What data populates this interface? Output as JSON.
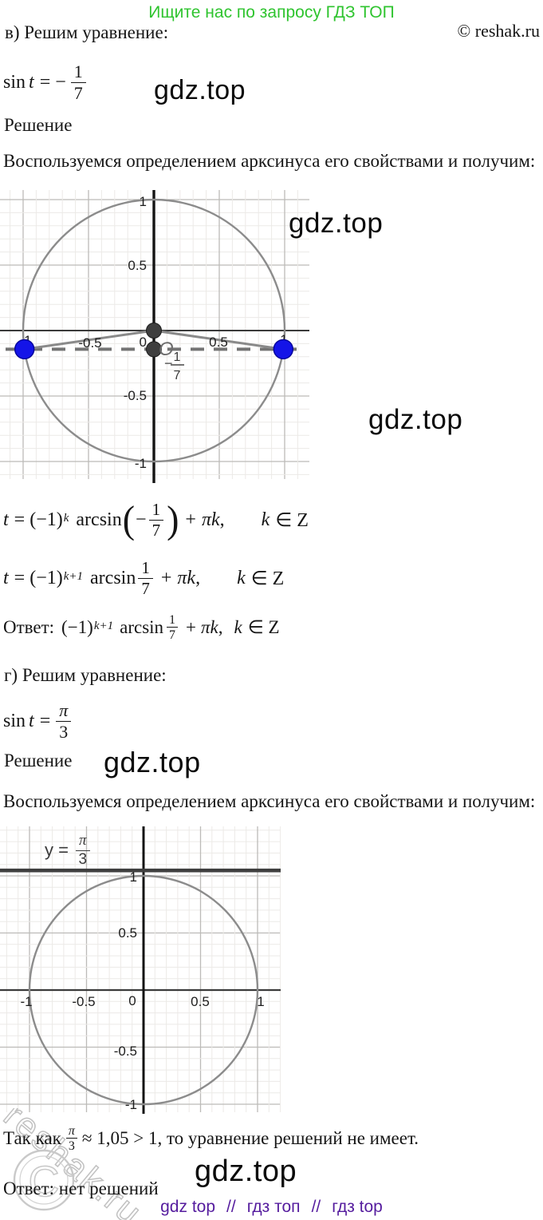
{
  "page": {
    "promo": "Ищите нас по запросу ГДЗ ТОП",
    "copyright": "© reshak.ru",
    "watermark": "gdz.top",
    "footer": {
      "link1": "gdz top",
      "sep1": "//",
      "link2": "гдз топ",
      "sep2": "//",
      "link3": "гдз top"
    },
    "colors": {
      "promo_green": "#2fc42f",
      "footer_purple": "#551c9e",
      "point_blue": "#1414e8",
      "point_dark": "#3e3e3e"
    }
  },
  "stamp": {
    "text": "reshak.ru",
    "symbol": "C"
  },
  "sections": {
    "v": {
      "heading": "в) Решим уравнение:",
      "eq": {
        "sin": "sin",
        "var": "t",
        "rel": "= −",
        "num": "1",
        "den": "7"
      },
      "solution": "Решение",
      "method": "Воспользуемся определением арксинуса его свойствами и получим:",
      "f1": {
        "var": "t",
        "eq": "= (−1)",
        "sup": "k",
        "fn": "arcsin",
        "lp": "(",
        "minus": "−",
        "num": "1",
        "den": "7",
        "rp": ")",
        "plus": "+",
        "pik": "πk",
        "comma": ",",
        "kvar": "k",
        "cond": "∈ Z"
      },
      "f2": {
        "var": "t",
        "eq": "= (−1)",
        "sup": "k+1",
        "fn": "arcsin",
        "num": "1",
        "den": "7",
        "plus": "+",
        "pik": "πk",
        "comma": ",",
        "kvar": "k",
        "cond": "∈ Z"
      },
      "answer": {
        "label": "Ответ:",
        "eq": "(−1)",
        "sup": "k+1",
        "fn": "arcsin",
        "num": "1",
        "den": "7",
        "plus": "+",
        "pik": "πk",
        "comma": ",",
        "kvar": "k",
        "cond": "∈ Z"
      }
    },
    "g": {
      "heading": "г) Решим уравнение:",
      "eq": {
        "sin": "sin",
        "var": "t",
        "rel": "=",
        "num": "π",
        "den": "3"
      },
      "solution": "Решение",
      "method": "Воспользуемся определением арксинуса его свойствами и получим:",
      "conclusion": {
        "pre": "Так как",
        "num": "π",
        "den": "3",
        "post": "≈ 1,05 > 1, то уравнение решений не имеет."
      },
      "answer": "Ответ: нет решений"
    }
  },
  "chart_data": [
    {
      "type": "scatter",
      "title": "",
      "xlabel": "",
      "ylabel": "",
      "description": "Unit circle x²+y²=1 with dashed horizontal line y=−1/7 crossing it at two blue points; radii drawn from origin to both intersection points",
      "xlim": [
        -1.18,
        1.19
      ],
      "ylim": [
        -1.09,
        1.08
      ],
      "grid": true,
      "grid_step_major": 0.5,
      "grid_step_minor": 0.1,
      "circle": {
        "cx": 0,
        "cy": 0,
        "r": 1
      },
      "dashed_line_y": -0.1429,
      "dashed_label": {
        "minus": "−",
        "num": "1",
        "den": "7"
      },
      "origin_label": "O",
      "x_tick_labels": [
        "-1",
        "-0.5",
        "0.5",
        "1"
      ],
      "y_tick_labels": [
        "1",
        "0.5",
        "0",
        "-0.5",
        "-1"
      ],
      "points": [
        {
          "x": -0.99,
          "y": -0.1429,
          "color": "blue"
        },
        {
          "x": 0.99,
          "y": -0.1429,
          "color": "blue"
        },
        {
          "x": 0,
          "y": 0,
          "color": "dark-gray"
        },
        {
          "x": 0,
          "y": -0.1429,
          "color": "dark-gray"
        }
      ],
      "segments": [
        {
          "from": [
            0,
            0
          ],
          "to": [
            -0.99,
            -0.1429
          ]
        },
        {
          "from": [
            0,
            0
          ],
          "to": [
            0.99,
            -0.1429
          ]
        }
      ]
    },
    {
      "type": "scatter",
      "title": "",
      "xlabel": "",
      "ylabel": "",
      "description": "Unit circle x²+y²=1 with solid horizontal line y=π/3≈1.047 lying above the circle — no intersection, hence no solutions",
      "xlim": [
        -1.26,
        1.2
      ],
      "ylim": [
        -1.08,
        1.43
      ],
      "grid": true,
      "grid_step_major": 0.5,
      "grid_step_minor": 0.1,
      "circle": {
        "cx": 0,
        "cy": 0,
        "r": 1
      },
      "solid_line_y": 1.047,
      "line_label": {
        "lead": "y =",
        "num": "π",
        "den": "3"
      },
      "x_tick_labels": [
        "-1",
        "-0.5",
        "0",
        "0.5",
        "1"
      ],
      "y_tick_labels": [
        "1",
        "0.5",
        "-0.5",
        "-1"
      ]
    }
  ]
}
